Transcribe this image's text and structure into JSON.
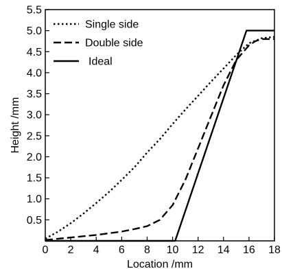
{
  "chart_data": {
    "type": "line",
    "xlabel": "Location /mm",
    "ylabel": "Height /mm",
    "xlim": [
      0,
      18
    ],
    "ylim": [
      0,
      5.5
    ],
    "xticks": [
      0,
      2,
      4,
      6,
      8,
      10,
      12,
      14,
      16,
      18
    ],
    "yticks": [
      0.5,
      1.0,
      1.5,
      2.0,
      2.5,
      3.0,
      3.5,
      4.0,
      4.5,
      5.0,
      5.5
    ],
    "xtick_labels": [
      "0",
      "2",
      "4",
      "6",
      "8",
      "10",
      "12",
      "14",
      "16",
      "18"
    ],
    "ytick_labels": [
      "0.5",
      "1.0",
      "1.5",
      "2.0",
      "2.5",
      "3.0",
      "3.5",
      "4.0",
      "4.5",
      "5.0",
      "5.5"
    ],
    "grid": false,
    "legend_position": "top-left",
    "series": [
      {
        "name": "Single side",
        "style": "dotted",
        "x": [
          0,
          1,
          2,
          3,
          4,
          5,
          6,
          7,
          8,
          9,
          10,
          11,
          12,
          13,
          14,
          15,
          16,
          17,
          18
        ],
        "y": [
          0.05,
          0.22,
          0.42,
          0.65,
          0.9,
          1.16,
          1.45,
          1.75,
          2.1,
          2.42,
          2.78,
          3.12,
          3.45,
          3.78,
          4.1,
          4.42,
          4.7,
          4.82,
          4.85
        ]
      },
      {
        "name": "Double side",
        "style": "dashed",
        "x": [
          0,
          2,
          4,
          6,
          7,
          8,
          9,
          10,
          11,
          12,
          13,
          14,
          15,
          16,
          16.5,
          17,
          18
        ],
        "y": [
          0.02,
          0.08,
          0.14,
          0.22,
          0.28,
          0.35,
          0.5,
          0.85,
          1.45,
          2.2,
          2.95,
          3.7,
          4.3,
          4.65,
          4.75,
          4.8,
          4.8
        ]
      },
      {
        "name": "Ideal",
        "style": "solid",
        "x": [
          0,
          10.2,
          15.8,
          18
        ],
        "y": [
          0,
          0,
          5.0,
          5.0
        ]
      }
    ]
  },
  "colors": {
    "line": "#000000",
    "background": "#ffffff"
  }
}
